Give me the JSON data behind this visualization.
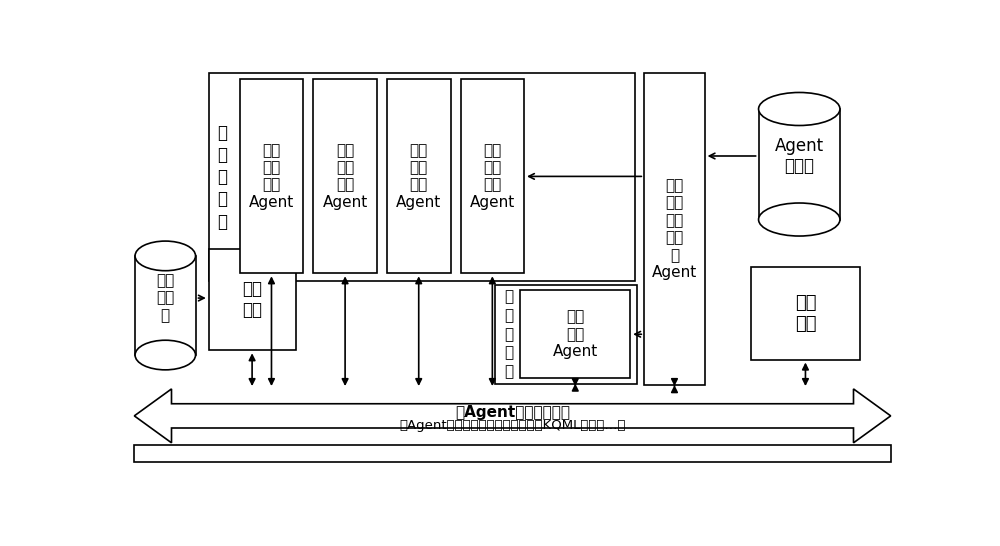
{
  "bg_color": "#ffffff",
  "platform_text1": "多Agent运行支撑平台",
  "platform_text2": "（Agent管理服务、时间管理服务、KQML服务、…）",
  "agent_model_text": "Agent\n模型库",
  "eval_lib_text": "评估\n算法\n库",
  "analysis_text": "分析\n评估",
  "battlefield_text": "战场\n环境\n及兵\n力生\n成\nAgent",
  "hmi_text": "人机\n交互",
  "biz_logic_text": "业\n务\n逻\n辑\n层",
  "intel_acq_text": "情报\n获取\n单元\nAgent",
  "intel_proc_text": "情报\n处理\n单元\nAgent",
  "decision_text": "决策\n控制\n单元\nAgent",
  "terminal_text": "末端\n作战\n单元\nAgent",
  "net_logic_text": "网\n络\n逻\n辑\n层",
  "info_network_text": "信息\n网络\nAgent",
  "lw": 1.2
}
